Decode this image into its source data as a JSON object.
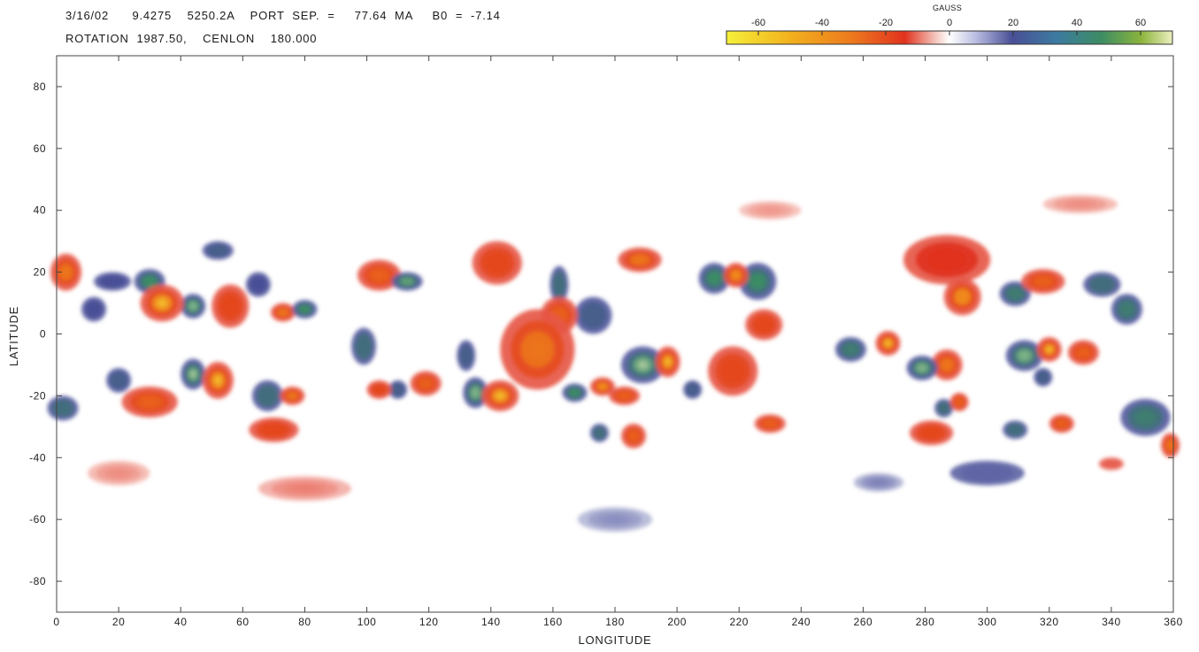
{
  "header": {
    "line1": "3/16/02      9.4275    5250.2A    PORT  SEP.  =     77.64  MA     B0  =  -7.14",
    "line2": "ROTATION  1987.50,    CENLON    180.000"
  },
  "colorbar": {
    "title": "GAUSS",
    "ticks": [
      -60,
      -40,
      -20,
      0,
      20,
      40,
      60
    ],
    "range": [
      -70,
      70
    ],
    "colors": {
      "neg_strong": "#f5f03a",
      "neg_mid": "#f08a1e",
      "neg_weak": "#e0321e",
      "zero": "#ffffff",
      "pos_weak": "#4a4f96",
      "pos_mid": "#3c8c64",
      "pos_strong": "#ecefc0"
    }
  },
  "chart_data": {
    "type": "heatmap",
    "title": "",
    "xlabel": "LONGITUDE",
    "ylabel": "LATITUDE",
    "xlim": [
      0,
      360
    ],
    "ylim": [
      -90,
      90
    ],
    "xticks": [
      0,
      20,
      40,
      60,
      80,
      100,
      120,
      140,
      160,
      180,
      200,
      220,
      240,
      260,
      280,
      300,
      320,
      340,
      360
    ],
    "yticks": [
      -80,
      -60,
      -40,
      -20,
      0,
      20,
      40,
      60,
      80
    ],
    "value_label": "GAUSS",
    "regions": [
      {
        "lon": 3,
        "lat": 20,
        "gauss": -45,
        "w": 5,
        "h": 6
      },
      {
        "lon": 2,
        "lat": -24,
        "gauss": 35,
        "w": 5,
        "h": 4
      },
      {
        "lon": 12,
        "lat": 8,
        "gauss": 25,
        "w": 4,
        "h": 4
      },
      {
        "lon": 18,
        "lat": 17,
        "gauss": 25,
        "w": 6,
        "h": 3
      },
      {
        "lon": 30,
        "lat": 17,
        "gauss": 45,
        "w": 5,
        "h": 4
      },
      {
        "lon": 34,
        "lat": 10,
        "gauss": -60,
        "w": 7,
        "h": 6
      },
      {
        "lon": 44,
        "lat": 9,
        "gauss": 55,
        "w": 4,
        "h": 4
      },
      {
        "lon": 56,
        "lat": 9,
        "gauss": -35,
        "w": 6,
        "h": 7
      },
      {
        "lon": 52,
        "lat": 27,
        "gauss": 30,
        "w": 5,
        "h": 3
      },
      {
        "lon": 20,
        "lat": -15,
        "gauss": 30,
        "w": 4,
        "h": 4
      },
      {
        "lon": 30,
        "lat": -22,
        "gauss": -40,
        "w": 9,
        "h": 5
      },
      {
        "lon": 44,
        "lat": -13,
        "gauss": 60,
        "w": 4,
        "h": 5
      },
      {
        "lon": 52,
        "lat": -15,
        "gauss": -60,
        "w": 5,
        "h": 6
      },
      {
        "lon": 68,
        "lat": -20,
        "gauss": 35,
        "w": 5,
        "h": 5
      },
      {
        "lon": 76,
        "lat": -20,
        "gauss": -45,
        "w": 4,
        "h": 3
      },
      {
        "lon": 70,
        "lat": -31,
        "gauss": -35,
        "w": 8,
        "h": 4
      },
      {
        "lon": 73,
        "lat": 7,
        "gauss": -45,
        "w": 4,
        "h": 3
      },
      {
        "lon": 80,
        "lat": 8,
        "gauss": 45,
        "w": 4,
        "h": 3
      },
      {
        "lon": 65,
        "lat": 16,
        "gauss": 25,
        "w": 4,
        "h": 4
      },
      {
        "lon": 104,
        "lat": 19,
        "gauss": -40,
        "w": 7,
        "h": 5
      },
      {
        "lon": 113,
        "lat": 17,
        "gauss": 50,
        "w": 5,
        "h": 3
      },
      {
        "lon": 99,
        "lat": -4,
        "gauss": 35,
        "w": 4,
        "h": 6
      },
      {
        "lon": 104,
        "lat": -18,
        "gauss": -35,
        "w": 4,
        "h": 3
      },
      {
        "lon": 110,
        "lat": -18,
        "gauss": 30,
        "w": 3,
        "h": 3
      },
      {
        "lon": 119,
        "lat": -16,
        "gauss": -40,
        "w": 5,
        "h": 4
      },
      {
        "lon": 135,
        "lat": -19,
        "gauss": 55,
        "w": 4,
        "h": 5
      },
      {
        "lon": 143,
        "lat": -20,
        "gauss": -60,
        "w": 6,
        "h": 5
      },
      {
        "lon": 132,
        "lat": -7,
        "gauss": 30,
        "w": 3,
        "h": 5
      },
      {
        "lon": 142,
        "lat": 23,
        "gauss": -35,
        "w": 8,
        "h": 7
      },
      {
        "lon": 155,
        "lat": -5,
        "gauss": -45,
        "w": 12,
        "h": 13
      },
      {
        "lon": 162,
        "lat": 6,
        "gauss": -40,
        "w": 6,
        "h": 6
      },
      {
        "lon": 162,
        "lat": 16,
        "gauss": 35,
        "w": 3,
        "h": 6
      },
      {
        "lon": 173,
        "lat": 6,
        "gauss": 30,
        "w": 6,
        "h": 6
      },
      {
        "lon": 167,
        "lat": -19,
        "gauss": 45,
        "w": 4,
        "h": 3
      },
      {
        "lon": 176,
        "lat": -17,
        "gauss": -50,
        "w": 4,
        "h": 3
      },
      {
        "lon": 183,
        "lat": -20,
        "gauss": -40,
        "w": 5,
        "h": 3
      },
      {
        "lon": 175,
        "lat": -32,
        "gauss": 35,
        "w": 3,
        "h": 3
      },
      {
        "lon": 186,
        "lat": -33,
        "gauss": -40,
        "w": 4,
        "h": 4
      },
      {
        "lon": 188,
        "lat": 24,
        "gauss": -45,
        "w": 7,
        "h": 4
      },
      {
        "lon": 189,
        "lat": -10,
        "gauss": 60,
        "w": 7,
        "h": 6
      },
      {
        "lon": 197,
        "lat": -9,
        "gauss": -60,
        "w": 4,
        "h": 5
      },
      {
        "lon": 205,
        "lat": -18,
        "gauss": 30,
        "w": 3,
        "h": 3
      },
      {
        "lon": 212,
        "lat": 18,
        "gauss": 45,
        "w": 5,
        "h": 5
      },
      {
        "lon": 219,
        "lat": 19,
        "gauss": -50,
        "w": 4,
        "h": 4
      },
      {
        "lon": 226,
        "lat": 17,
        "gauss": 45,
        "w": 6,
        "h": 6
      },
      {
        "lon": 228,
        "lat": 3,
        "gauss": -35,
        "w": 6,
        "h": 5
      },
      {
        "lon": 218,
        "lat": -12,
        "gauss": -35,
        "w": 8,
        "h": 8
      },
      {
        "lon": 230,
        "lat": -29,
        "gauss": -40,
        "w": 5,
        "h": 3
      },
      {
        "lon": 256,
        "lat": -5,
        "gauss": 40,
        "w": 5,
        "h": 4
      },
      {
        "lon": 268,
        "lat": -3,
        "gauss": -60,
        "w": 4,
        "h": 4
      },
      {
        "lon": 279,
        "lat": -11,
        "gauss": 55,
        "w": 5,
        "h": 4
      },
      {
        "lon": 287,
        "lat": -10,
        "gauss": -45,
        "w": 5,
        "h": 5
      },
      {
        "lon": 286,
        "lat": -24,
        "gauss": 35,
        "w": 3,
        "h": 3
      },
      {
        "lon": 291,
        "lat": -22,
        "gauss": -40,
        "w": 3,
        "h": 3
      },
      {
        "lon": 282,
        "lat": -32,
        "gauss": -35,
        "w": 7,
        "h": 4
      },
      {
        "lon": 292,
        "lat": 12,
        "gauss": -50,
        "w": 6,
        "h": 6
      },
      {
        "lon": 287,
        "lat": 24,
        "gauss": -30,
        "w": 14,
        "h": 8
      },
      {
        "lon": 309,
        "lat": 13,
        "gauss": 40,
        "w": 5,
        "h": 4
      },
      {
        "lon": 318,
        "lat": 17,
        "gauss": -40,
        "w": 7,
        "h": 4
      },
      {
        "lon": 312,
        "lat": -7,
        "gauss": 55,
        "w": 6,
        "h": 5
      },
      {
        "lon": 320,
        "lat": -5,
        "gauss": -60,
        "w": 4,
        "h": 4
      },
      {
        "lon": 331,
        "lat": -6,
        "gauss": -40,
        "w": 5,
        "h": 4
      },
      {
        "lon": 318,
        "lat": -14,
        "gauss": 30,
        "w": 3,
        "h": 3
      },
      {
        "lon": 309,
        "lat": -31,
        "gauss": 35,
        "w": 4,
        "h": 3
      },
      {
        "lon": 324,
        "lat": -29,
        "gauss": -40,
        "w": 4,
        "h": 3
      },
      {
        "lon": 337,
        "lat": 16,
        "gauss": 35,
        "w": 6,
        "h": 4
      },
      {
        "lon": 345,
        "lat": 8,
        "gauss": 40,
        "w": 5,
        "h": 5
      },
      {
        "lon": 351,
        "lat": -27,
        "gauss": 40,
        "w": 8,
        "h": 6
      },
      {
        "lon": 359,
        "lat": -36,
        "gauss": -45,
        "w": 3,
        "h": 4
      },
      {
        "lon": 340,
        "lat": -42,
        "gauss": -20,
        "w": 4,
        "h": 2
      },
      {
        "lon": 300,
        "lat": -45,
        "gauss": 20,
        "w": 12,
        "h": 4
      },
      {
        "lon": 265,
        "lat": -48,
        "gauss": 15,
        "w": 8,
        "h": 3
      },
      {
        "lon": 180,
        "lat": -60,
        "gauss": 12,
        "w": 12,
        "h": 4
      },
      {
        "lon": 80,
        "lat": -50,
        "gauss": -15,
        "w": 15,
        "h": 4
      },
      {
        "lon": 20,
        "lat": -45,
        "gauss": -12,
        "w": 10,
        "h": 4
      },
      {
        "lon": 230,
        "lat": 40,
        "gauss": -10,
        "w": 10,
        "h": 3
      },
      {
        "lon": 330,
        "lat": 42,
        "gauss": -12,
        "w": 12,
        "h": 3
      }
    ]
  }
}
